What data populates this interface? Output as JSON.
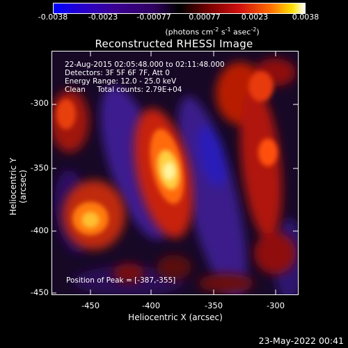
{
  "colorbar": {
    "ticks": [
      "-0.0038",
      "-0.0023",
      "-0.00077",
      "0.00077",
      "0.0023",
      "0.0038"
    ],
    "unit_prefix": "(photons cm",
    "unit_exp1": "-2",
    "unit_mid1": " s",
    "unit_exp2": "-1",
    "unit_mid2": " asec",
    "unit_exp3": "-2",
    "unit_suffix": ")"
  },
  "title": "Reconstructed RHESSI Image",
  "info": {
    "line1": "22-Aug-2015 02:05:48.000 to 02:11:48.000",
    "line2": "Detectors: 3F 5F 6F 7F, Att 0",
    "line3": "Energy Range: 12.0 - 25.0 keV",
    "line4": "Clean     Total counts: 2.79E+04"
  },
  "peak_text": "Position of Peak = [-387,-355]",
  "yaxis": {
    "label": "Heliocentric Y (arcsec)",
    "ticks": [
      "-300",
      "-350",
      "-400",
      "-450"
    ]
  },
  "xaxis": {
    "label": "Heliocentric X (arcsec)",
    "ticks": [
      "-450",
      "-400",
      "-350",
      "-300"
    ]
  },
  "footer_date": "23-May-2022 00:41",
  "colors": {
    "background": "#000000",
    "axis": "#ffffff",
    "negative": "#3a1890",
    "peak": "#fff5a0"
  }
}
